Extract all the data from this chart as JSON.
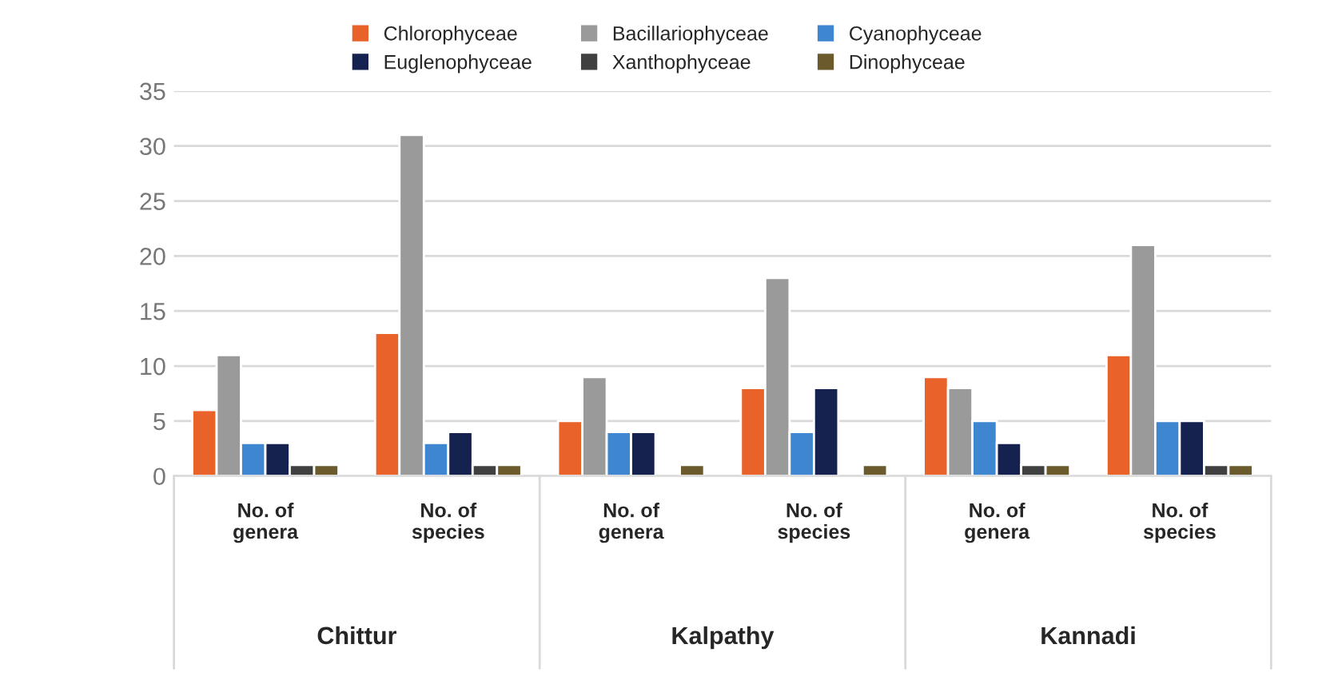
{
  "chart_data": {
    "type": "bar",
    "categories": [
      "No. of\ngenera",
      "No. of\nspecies",
      "No. of\ngenera",
      "No. of\nspecies",
      "No. of\ngenera",
      "No. of\nspecies"
    ],
    "series": [
      {
        "name": "Chlorophyceae",
        "color": "#e8622a",
        "values": [
          6,
          13,
          5,
          8,
          9,
          11
        ]
      },
      {
        "name": "Bacillariophyceae",
        "color": "#9a9a9a",
        "values": [
          11,
          31,
          9,
          18,
          8,
          21
        ]
      },
      {
        "name": "Cyanophyceae",
        "color": "#3f86d0",
        "values": [
          3,
          3,
          4,
          4,
          5,
          5
        ]
      },
      {
        "name": "Euglenophyceae",
        "color": "#15214f",
        "values": [
          3,
          4,
          4,
          8,
          3,
          5
        ]
      },
      {
        "name": "Xanthophyceae",
        "color": "#404040",
        "values": [
          1,
          1,
          null,
          null,
          1,
          1
        ]
      },
      {
        "name": "Dinophyceae",
        "color": "#6b5a2b",
        "values": [
          1,
          1,
          1,
          1,
          1,
          1
        ]
      }
    ],
    "annotations": [
      "Chittur",
      "Kalpathy",
      "Kannadi"
    ],
    "ylim": [
      0,
      35
    ],
    "yticks": [
      0,
      5,
      10,
      15,
      20,
      25,
      30,
      35
    ],
    "grid": "y",
    "legend": "top"
  }
}
